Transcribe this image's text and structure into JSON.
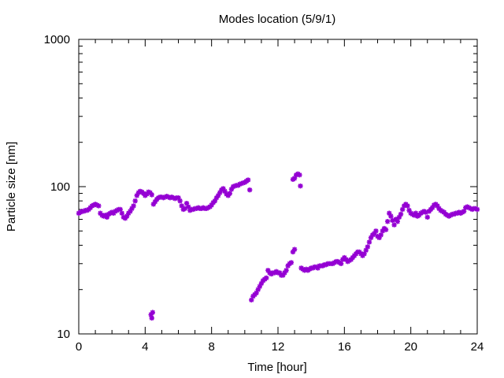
{
  "chart_data": {
    "type": "scatter",
    "title": "Modes location (5/9/1)",
    "xlabel": "Time [hour]",
    "ylabel": "Particle size [nm]",
    "xlim": [
      0,
      24
    ],
    "ylim": [
      10,
      1000
    ],
    "y_scale": "log",
    "x_ticks": [
      0,
      4,
      8,
      12,
      16,
      20,
      24
    ],
    "x_tick_labels": [
      "0",
      "4",
      "8",
      "12",
      "16",
      "20",
      "24"
    ],
    "y_ticks": [
      10,
      100,
      1000
    ],
    "y_tick_labels": [
      "10",
      "100",
      "1000"
    ],
    "grid": false,
    "legend": "none",
    "marker": "star",
    "color": "#9400d3",
    "series": [
      {
        "points": [
          [
            0.0,
            66
          ],
          [
            0.1,
            67
          ],
          [
            0.2,
            68
          ],
          [
            0.3,
            68
          ],
          [
            0.4,
            69
          ],
          [
            0.5,
            69
          ],
          [
            0.6,
            70
          ],
          [
            0.7,
            72
          ],
          [
            0.8,
            74
          ],
          [
            0.9,
            75
          ],
          [
            1.0,
            76
          ],
          [
            1.1,
            75
          ],
          [
            1.2,
            74
          ],
          [
            1.3,
            66
          ],
          [
            1.4,
            64
          ],
          [
            1.5,
            63
          ],
          [
            1.6,
            64
          ],
          [
            1.7,
            62
          ],
          [
            1.8,
            65
          ],
          [
            1.9,
            66
          ],
          [
            2.0,
            67
          ],
          [
            2.1,
            66
          ],
          [
            2.2,
            68
          ],
          [
            2.3,
            69
          ],
          [
            2.4,
            70
          ],
          [
            2.5,
            70
          ],
          [
            2.6,
            66
          ],
          [
            2.7,
            62
          ],
          [
            2.8,
            61
          ],
          [
            2.9,
            63
          ],
          [
            3.0,
            66
          ],
          [
            3.1,
            68
          ],
          [
            3.2,
            71
          ],
          [
            3.3,
            74
          ],
          [
            3.4,
            80
          ],
          [
            3.5,
            87
          ],
          [
            3.6,
            91
          ],
          [
            3.7,
            93
          ],
          [
            3.8,
            92
          ],
          [
            3.9,
            90
          ],
          [
            4.0,
            87
          ],
          [
            4.1,
            89
          ],
          [
            4.2,
            92
          ],
          [
            4.3,
            91
          ],
          [
            4.4,
            88
          ],
          [
            4.5,
            76
          ],
          [
            4.6,
            79
          ],
          [
            4.7,
            82
          ],
          [
            4.8,
            84
          ],
          [
            4.9,
            85
          ],
          [
            5.0,
            85
          ],
          [
            5.1,
            84
          ],
          [
            5.2,
            85
          ],
          [
            5.3,
            86
          ],
          [
            5.4,
            85
          ],
          [
            5.5,
            84
          ],
          [
            5.6,
            85
          ],
          [
            5.7,
            84
          ],
          [
            5.8,
            83
          ],
          [
            5.9,
            84
          ],
          [
            6.0,
            84
          ],
          [
            6.1,
            80
          ],
          [
            6.2,
            74
          ],
          [
            6.3,
            70
          ],
          [
            6.4,
            71
          ],
          [
            6.5,
            77
          ],
          [
            6.6,
            73
          ],
          [
            6.7,
            69
          ],
          [
            6.8,
            70
          ],
          [
            6.9,
            70
          ],
          [
            7.0,
            71
          ],
          [
            7.1,
            71
          ],
          [
            7.2,
            72
          ],
          [
            7.3,
            71
          ],
          [
            7.4,
            71
          ],
          [
            7.5,
            72
          ],
          [
            7.6,
            71
          ],
          [
            7.7,
            71
          ],
          [
            7.8,
            72
          ],
          [
            7.9,
            73
          ],
          [
            8.0,
            75
          ],
          [
            8.1,
            78
          ],
          [
            8.2,
            80
          ],
          [
            8.3,
            84
          ],
          [
            8.4,
            87
          ],
          [
            8.5,
            91
          ],
          [
            8.6,
            95
          ],
          [
            8.7,
            97
          ],
          [
            8.8,
            93
          ],
          [
            8.9,
            89
          ],
          [
            9.0,
            87
          ],
          [
            9.1,
            90
          ],
          [
            9.2,
            96
          ],
          [
            9.3,
            100
          ],
          [
            9.4,
            101
          ],
          [
            9.5,
            102
          ],
          [
            9.6,
            102
          ],
          [
            9.7,
            104
          ],
          [
            9.8,
            105
          ],
          [
            9.9,
            106
          ],
          [
            10.0,
            107
          ],
          [
            10.1,
            109
          ],
          [
            10.2,
            111
          ],
          [
            10.3,
            95
          ],
          [
            4.35,
            13.5
          ],
          [
            4.45,
            14.0
          ],
          [
            4.4,
            12.8
          ],
          [
            10.4,
            17
          ],
          [
            10.5,
            18
          ],
          [
            10.6,
            18.5
          ],
          [
            10.7,
            19
          ],
          [
            10.8,
            20
          ],
          [
            10.9,
            21
          ],
          [
            11.0,
            22
          ],
          [
            11.1,
            23
          ],
          [
            11.2,
            23.5
          ],
          [
            11.3,
            24
          ],
          [
            11.4,
            27
          ],
          [
            11.5,
            26
          ],
          [
            11.6,
            25.5
          ],
          [
            11.7,
            26
          ],
          [
            11.8,
            26
          ],
          [
            11.9,
            26.5
          ],
          [
            12.0,
            26
          ],
          [
            12.1,
            26
          ],
          [
            12.2,
            25
          ],
          [
            12.3,
            25
          ],
          [
            12.4,
            26
          ],
          [
            12.5,
            27
          ],
          [
            12.6,
            29
          ],
          [
            12.7,
            30
          ],
          [
            12.8,
            30.5
          ],
          [
            12.9,
            36
          ],
          [
            13.0,
            37.5
          ],
          [
            12.9,
            112
          ],
          [
            13.0,
            114
          ],
          [
            13.1,
            120
          ],
          [
            13.2,
            122
          ],
          [
            13.3,
            120
          ],
          [
            13.35,
            101
          ],
          [
            13.4,
            28
          ],
          [
            13.5,
            27.5
          ],
          [
            13.6,
            27
          ],
          [
            13.7,
            27.5
          ],
          [
            13.8,
            27
          ],
          [
            13.9,
            27.5
          ],
          [
            14.0,
            28
          ],
          [
            14.1,
            28
          ],
          [
            14.2,
            28.5
          ],
          [
            14.3,
            28.5
          ],
          [
            14.4,
            28
          ],
          [
            14.5,
            29
          ],
          [
            14.6,
            29
          ],
          [
            14.7,
            29
          ],
          [
            14.8,
            29.5
          ],
          [
            14.9,
            29.5
          ],
          [
            15.0,
            30
          ],
          [
            15.1,
            30
          ],
          [
            15.2,
            30
          ],
          [
            15.3,
            30
          ],
          [
            15.4,
            30.5
          ],
          [
            15.5,
            31
          ],
          [
            15.6,
            31
          ],
          [
            15.7,
            30.5
          ],
          [
            15.8,
            30
          ],
          [
            15.9,
            32
          ],
          [
            16.0,
            33
          ],
          [
            16.1,
            32
          ],
          [
            16.2,
            31
          ],
          [
            16.3,
            31.5
          ],
          [
            16.4,
            32
          ],
          [
            16.5,
            33
          ],
          [
            16.6,
            34
          ],
          [
            16.7,
            35
          ],
          [
            16.8,
            36
          ],
          [
            16.9,
            36
          ],
          [
            17.0,
            35
          ],
          [
            17.1,
            34
          ],
          [
            17.2,
            35
          ],
          [
            17.3,
            37
          ],
          [
            17.4,
            39
          ],
          [
            17.5,
            42
          ],
          [
            17.6,
            45
          ],
          [
            17.7,
            47
          ],
          [
            17.8,
            48
          ],
          [
            17.9,
            50
          ],
          [
            18.0,
            46
          ],
          [
            18.1,
            45
          ],
          [
            18.2,
            47
          ],
          [
            18.3,
            50
          ],
          [
            18.4,
            52
          ],
          [
            18.5,
            51
          ],
          [
            18.6,
            58
          ],
          [
            18.7,
            66
          ],
          [
            18.8,
            63
          ],
          [
            18.9,
            59
          ],
          [
            19.0,
            55
          ],
          [
            19.1,
            60
          ],
          [
            19.2,
            58
          ],
          [
            19.3,
            62
          ],
          [
            19.4,
            65
          ],
          [
            19.5,
            70
          ],
          [
            19.6,
            74
          ],
          [
            19.7,
            76
          ],
          [
            19.8,
            74
          ],
          [
            19.9,
            69
          ],
          [
            20.0,
            66
          ],
          [
            20.1,
            65
          ],
          [
            20.2,
            64
          ],
          [
            20.3,
            66
          ],
          [
            20.4,
            63
          ],
          [
            20.5,
            64
          ],
          [
            20.6,
            66
          ],
          [
            20.7,
            67
          ],
          [
            20.8,
            68
          ],
          [
            20.9,
            67
          ],
          [
            21.0,
            62
          ],
          [
            21.1,
            68
          ],
          [
            21.2,
            70
          ],
          [
            21.3,
            72
          ],
          [
            21.4,
            75
          ],
          [
            21.5,
            76
          ],
          [
            21.6,
            74
          ],
          [
            21.7,
            71
          ],
          [
            21.8,
            69
          ],
          [
            21.9,
            68
          ],
          [
            22.0,
            67
          ],
          [
            22.1,
            65
          ],
          [
            22.2,
            64
          ],
          [
            22.3,
            63
          ],
          [
            22.4,
            64
          ],
          [
            22.5,
            65
          ],
          [
            22.6,
            65
          ],
          [
            22.7,
            66
          ],
          [
            22.8,
            66
          ],
          [
            22.9,
            67
          ],
          [
            23.0,
            66
          ],
          [
            23.1,
            67
          ],
          [
            23.2,
            68
          ],
          [
            23.3,
            72
          ],
          [
            23.4,
            73
          ],
          [
            23.5,
            72
          ],
          [
            23.6,
            71
          ],
          [
            23.7,
            70
          ],
          [
            23.8,
            71
          ],
          [
            23.9,
            71
          ],
          [
            24.0,
            70
          ]
        ]
      }
    ]
  }
}
